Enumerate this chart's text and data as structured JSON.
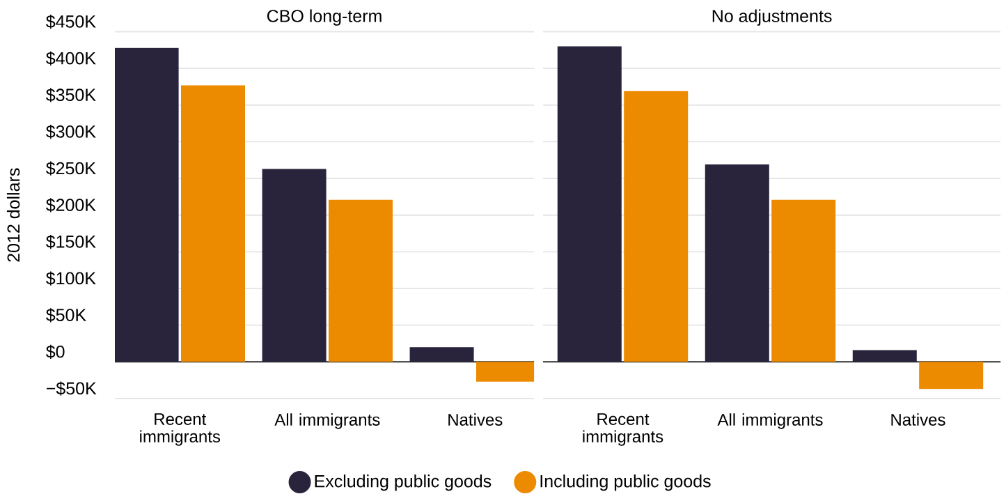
{
  "chart_data": [
    {
      "type": "bar",
      "title": "CBO long-term",
      "ylabel": "2012 dollars",
      "categories": [
        "Recent immigrants",
        "All immigrants",
        "Natives"
      ],
      "series": [
        {
          "name": "Excluding public goods",
          "color": "#29233c",
          "values": [
            428,
            263,
            20
          ]
        },
        {
          "name": "Including public goods",
          "color": "#ec8b00",
          "values": [
            377,
            221,
            -27
          ]
        }
      ],
      "ylim": [
        -50,
        450
      ],
      "yticks": [
        {
          "value": -50,
          "label": "−$50K"
        },
        {
          "value": 0,
          "label": "$0"
        },
        {
          "value": 50,
          "label": "$50K"
        },
        {
          "value": 100,
          "label": "$100K"
        },
        {
          "value": 150,
          "label": "$150K"
        },
        {
          "value": 200,
          "label": "$200K"
        },
        {
          "value": 250,
          "label": "$250K"
        },
        {
          "value": 300,
          "label": "$300K"
        },
        {
          "value": 350,
          "label": "$350K"
        },
        {
          "value": 400,
          "label": "$400K"
        },
        {
          "value": 450,
          "label": "$450K"
        }
      ],
      "grid": "y",
      "legend": "bottom"
    },
    {
      "type": "bar",
      "title": "No adjustments",
      "categories": [
        "Recent immigrants",
        "All immigrants",
        "Natives"
      ],
      "series": [
        {
          "color": "#29233c",
          "values": [
            430,
            269,
            16
          ]
        },
        {
          "color": "#ec8b00",
          "values": [
            369,
            221,
            -37
          ]
        }
      ],
      "ylim": [
        -50,
        450
      ],
      "yticks": [
        {
          "value": -50,
          "label": null
        },
        {
          "value": 0,
          "label": null
        },
        {
          "value": 50,
          "label": null
        },
        {
          "value": 100,
          "label": null
        },
        {
          "value": 150,
          "label": null
        },
        {
          "value": 200,
          "label": null
        },
        {
          "value": 250,
          "label": null
        },
        {
          "value": 300,
          "label": null
        },
        {
          "value": 350,
          "label": null
        },
        {
          "value": 400,
          "label": null
        },
        {
          "value": 450,
          "label": null
        }
      ],
      "grid": "y",
      "tick_labels": "x"
    }
  ]
}
